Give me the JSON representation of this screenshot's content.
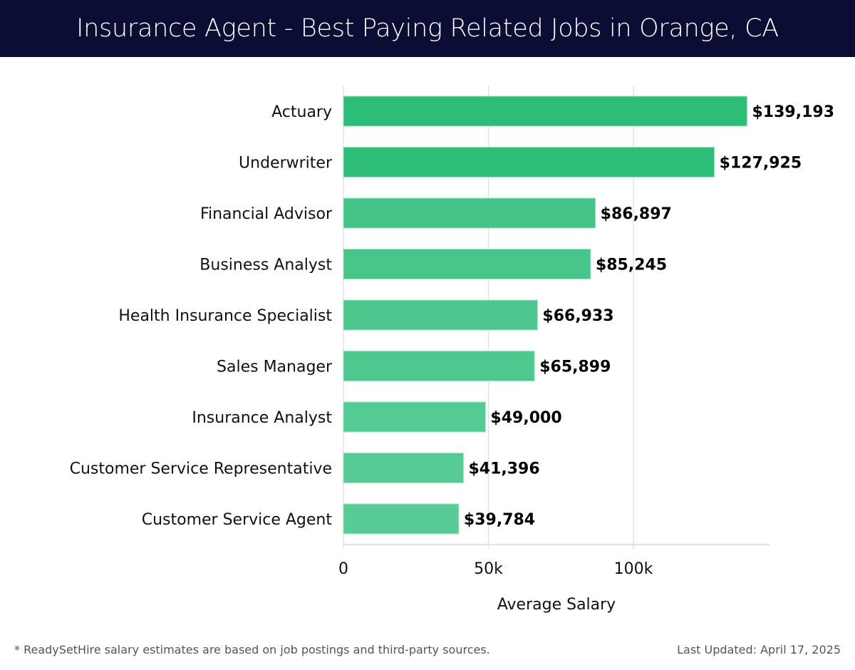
{
  "header": {
    "title": "Insurance Agent - Best Paying Related Jobs in Orange, CA"
  },
  "chart_data": {
    "type": "bar",
    "orientation": "horizontal",
    "title": "Insurance Agent - Best Paying Related Jobs in Orange, CA",
    "xlabel": "Average Salary",
    "ylabel": "",
    "xlim": [
      0,
      147000
    ],
    "grid": true,
    "xticks": [
      0,
      50000,
      100000
    ],
    "xtick_labels": [
      "0",
      "50k",
      "100k"
    ],
    "categories": [
      "Actuary",
      "Underwriter",
      "Financial Advisor",
      "Business Analyst",
      "Health Insurance Specialist",
      "Sales Manager",
      "Insurance Analyst",
      "Customer Service Representative",
      "Customer Service Agent"
    ],
    "values": [
      139193,
      127925,
      86897,
      85245,
      66933,
      65899,
      49000,
      41396,
      39784
    ],
    "value_labels": [
      "$139,193",
      "$127,925",
      "$86,897",
      "$85,245",
      "$66,933",
      "$65,899",
      "$49,000",
      "$41,396",
      "$39,784"
    ],
    "colors": [
      "#2dbd76",
      "#2fbe78",
      "#45c489",
      "#47c58a",
      "#4ec78f",
      "#4fc890",
      "#54ca94",
      "#57cb96",
      "#58cb97"
    ]
  },
  "footer": {
    "note": "* ReadySetHire salary estimates are based on job postings and third-party sources.",
    "updated": "Last Updated: April 17, 2025"
  }
}
